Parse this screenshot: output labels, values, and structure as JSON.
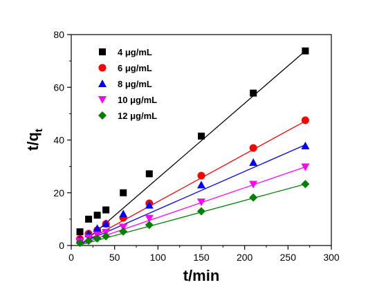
{
  "chart_data": {
    "type": "scatter",
    "xlabel": "t/min",
    "ylabel_main": "t/q",
    "ylabel_sub": "t",
    "xlim": [
      0,
      300
    ],
    "ylim": [
      0,
      80
    ],
    "xticks": [
      0,
      50,
      100,
      150,
      200,
      250,
      300
    ],
    "yticks": [
      0,
      20,
      40,
      60,
      80
    ],
    "grid": false,
    "legend_position": "top-left",
    "x": [
      10,
      20,
      30,
      40,
      60,
      90,
      150,
      210,
      270
    ],
    "series": [
      {
        "name": "4 μg/mL",
        "marker": "square",
        "color": "#000000",
        "values": [
          5.2,
          10.0,
          11.5,
          13.5,
          20.0,
          27.2,
          41.5,
          57.8,
          73.8
        ],
        "fit": [
          0.0,
          73.8
        ]
      },
      {
        "name": "6 μg/mL",
        "marker": "circle",
        "color": "#ff0000",
        "values": [
          2.5,
          4.5,
          5.8,
          8.2,
          10.5,
          16.0,
          26.5,
          37.0,
          47.5
        ],
        "fit": [
          0.5,
          47.2
        ]
      },
      {
        "name": "8 μg/mL",
        "marker": "triangle-up",
        "color": "#0000ff",
        "values": [
          2.2,
          4.5,
          6.5,
          8.3,
          12.0,
          15.3,
          23.0,
          31.5,
          37.8
        ],
        "fit": [
          0.7,
          38.2
        ]
      },
      {
        "name": "10 μg/mL",
        "marker": "triangle-down",
        "color": "#ff00ff",
        "values": [
          1.5,
          2.9,
          4.0,
          5.0,
          7.0,
          10.3,
          16.5,
          23.2,
          29.8
        ],
        "fit": [
          0.5,
          29.8
        ]
      },
      {
        "name": "12 μg/mL",
        "marker": "diamond",
        "color": "#008000",
        "values": [
          1.0,
          1.8,
          2.7,
          3.5,
          5.3,
          7.8,
          13.0,
          18.2,
          23.3
        ],
        "fit": [
          0.2,
          23.3
        ]
      }
    ]
  }
}
